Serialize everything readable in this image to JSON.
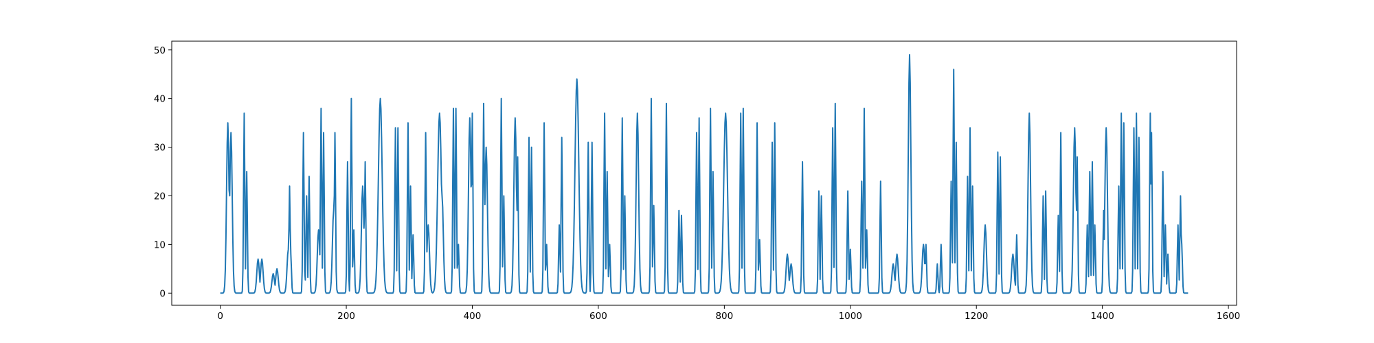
{
  "chart_data": {
    "type": "line",
    "title": "",
    "xlabel": "",
    "ylabel": "",
    "xlim": [
      -77,
      1613
    ],
    "ylim": [
      -2.5,
      51.8
    ],
    "x_ticks": [
      0,
      200,
      400,
      600,
      800,
      1000,
      1200,
      1400,
      1600
    ],
    "y_ticks": [
      0,
      10,
      20,
      30,
      40,
      50
    ],
    "grid": false,
    "legend": "none",
    "line_color": "#1f77b4",
    "x_start": 0,
    "x_end": 1536,
    "baseline": 0,
    "peaks": [
      [
        12,
        35,
        2
      ],
      [
        17,
        33,
        2
      ],
      [
        38,
        37,
        1
      ],
      [
        42,
        25,
        1
      ],
      [
        60,
        7,
        2
      ],
      [
        66,
        7,
        2
      ],
      [
        84,
        4,
        2
      ],
      [
        90,
        5,
        2
      ],
      [
        108,
        9,
        2
      ],
      [
        110,
        22,
        1
      ],
      [
        112,
        8,
        1
      ],
      [
        132,
        33,
        1
      ],
      [
        137,
        20,
        1
      ],
      [
        141,
        24,
        1
      ],
      [
        156,
        13,
        2
      ],
      [
        160,
        38,
        1
      ],
      [
        164,
        33,
        1
      ],
      [
        180,
        17,
        2
      ],
      [
        182,
        33,
        1
      ],
      [
        202,
        27,
        1
      ],
      [
        208,
        40,
        1
      ],
      [
        212,
        13,
        1
      ],
      [
        226,
        22,
        2
      ],
      [
        230,
        27,
        1
      ],
      [
        254,
        40,
        3
      ],
      [
        256,
        11,
        1
      ],
      [
        278,
        34,
        1
      ],
      [
        282,
        34,
        1
      ],
      [
        298,
        35,
        1
      ],
      [
        302,
        22,
        1
      ],
      [
        306,
        12,
        1
      ],
      [
        326,
        33,
        1
      ],
      [
        330,
        14,
        2
      ],
      [
        348,
        37,
        3
      ],
      [
        352,
        20,
        2
      ],
      [
        370,
        38,
        1
      ],
      [
        374,
        38,
        1
      ],
      [
        378,
        10,
        1
      ],
      [
        396,
        36,
        2
      ],
      [
        400,
        37,
        1
      ],
      [
        418,
        39,
        1
      ],
      [
        422,
        30,
        2
      ],
      [
        446,
        40,
        1
      ],
      [
        450,
        20,
        1
      ],
      [
        468,
        36,
        2
      ],
      [
        472,
        28,
        1
      ],
      [
        490,
        32,
        1
      ],
      [
        494,
        30,
        1
      ],
      [
        514,
        35,
        1
      ],
      [
        518,
        10,
        1
      ],
      [
        538,
        14,
        1
      ],
      [
        542,
        32,
        1
      ],
      [
        566,
        44,
        3
      ],
      [
        584,
        31,
        1
      ],
      [
        590,
        31,
        1
      ],
      [
        610,
        37,
        1
      ],
      [
        614,
        25,
        1
      ],
      [
        618,
        10,
        1
      ],
      [
        638,
        36,
        1
      ],
      [
        642,
        20,
        1
      ],
      [
        662,
        37,
        2
      ],
      [
        684,
        40,
        1
      ],
      [
        688,
        18,
        1
      ],
      [
        708,
        39,
        1
      ],
      [
        728,
        17,
        1
      ],
      [
        732,
        16,
        1
      ],
      [
        756,
        33,
        1
      ],
      [
        760,
        36,
        1
      ],
      [
        778,
        38,
        1
      ],
      [
        782,
        25,
        1
      ],
      [
        802,
        37,
        3
      ],
      [
        826,
        37,
        1
      ],
      [
        830,
        38,
        1
      ],
      [
        852,
        35,
        1
      ],
      [
        856,
        11,
        1
      ],
      [
        876,
        31,
        1
      ],
      [
        880,
        35,
        1
      ],
      [
        900,
        8,
        2
      ],
      [
        906,
        6,
        2
      ],
      [
        924,
        27,
        1
      ],
      [
        950,
        21,
        1
      ],
      [
        954,
        20,
        1
      ],
      [
        972,
        34,
        1
      ],
      [
        976,
        39,
        1
      ],
      [
        996,
        21,
        1
      ],
      [
        1000,
        9,
        1
      ],
      [
        1018,
        23,
        1
      ],
      [
        1022,
        38,
        1
      ],
      [
        1026,
        13,
        1
      ],
      [
        1048,
        23,
        1
      ],
      [
        1068,
        6,
        2
      ],
      [
        1074,
        8,
        2
      ],
      [
        1094,
        49,
        2
      ],
      [
        1116,
        10,
        2
      ],
      [
        1120,
        10,
        1
      ],
      [
        1138,
        6,
        1
      ],
      [
        1144,
        10,
        1
      ],
      [
        1160,
        23,
        1
      ],
      [
        1164,
        46,
        1
      ],
      [
        1168,
        31,
        1
      ],
      [
        1186,
        24,
        1
      ],
      [
        1190,
        34,
        1
      ],
      [
        1194,
        22,
        1
      ],
      [
        1214,
        14,
        2
      ],
      [
        1234,
        29,
        1
      ],
      [
        1238,
        28,
        1
      ],
      [
        1258,
        8,
        2
      ],
      [
        1264,
        12,
        1
      ],
      [
        1284,
        37,
        2
      ],
      [
        1306,
        20,
        1
      ],
      [
        1310,
        21,
        1
      ],
      [
        1330,
        16,
        1
      ],
      [
        1334,
        33,
        1
      ],
      [
        1356,
        34,
        2
      ],
      [
        1360,
        28,
        1
      ],
      [
        1376,
        14,
        1
      ],
      [
        1380,
        25,
        1
      ],
      [
        1384,
        27,
        1
      ],
      [
        1388,
        14,
        1
      ],
      [
        1402,
        17,
        1
      ],
      [
        1406,
        34,
        2
      ],
      [
        1426,
        22,
        1
      ],
      [
        1430,
        37,
        1
      ],
      [
        1434,
        35,
        1
      ],
      [
        1450,
        34,
        1
      ],
      [
        1454,
        37,
        1
      ],
      [
        1458,
        32,
        1
      ],
      [
        1476,
        37,
        1
      ],
      [
        1478,
        33,
        1
      ],
      [
        1496,
        25,
        1
      ],
      [
        1500,
        14,
        1
      ],
      [
        1504,
        8,
        1
      ],
      [
        1520,
        14,
        1
      ],
      [
        1524,
        20,
        1
      ],
      [
        1526,
        10,
        1
      ]
    ]
  }
}
